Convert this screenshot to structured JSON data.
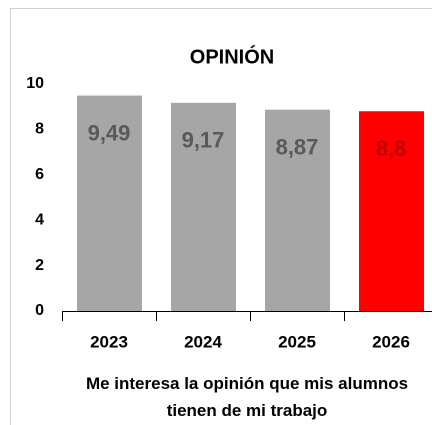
{
  "chart_data": {
    "type": "bar",
    "title": "OPINIÓN",
    "categories": [
      "2023",
      "2024",
      "2025",
      "2026"
    ],
    "values": [
      9.49,
      9.17,
      8.87,
      8.8
    ],
    "value_labels": [
      "9,49",
      "9,17",
      "8,87",
      "8,8"
    ],
    "colors": [
      "#a6a6a6",
      "#a6a6a6",
      "#a6a6a6",
      "#ff0000"
    ],
    "value_label_colors": [
      "#595959",
      "#595959",
      "#595959",
      "#c00000"
    ],
    "ylim": [
      0,
      10
    ],
    "yticks": [
      0,
      2,
      4,
      6,
      8,
      10
    ],
    "xlabel": "Me interesa la opinión que mis alumnos tienen de mi trabajo",
    "grid": false
  }
}
